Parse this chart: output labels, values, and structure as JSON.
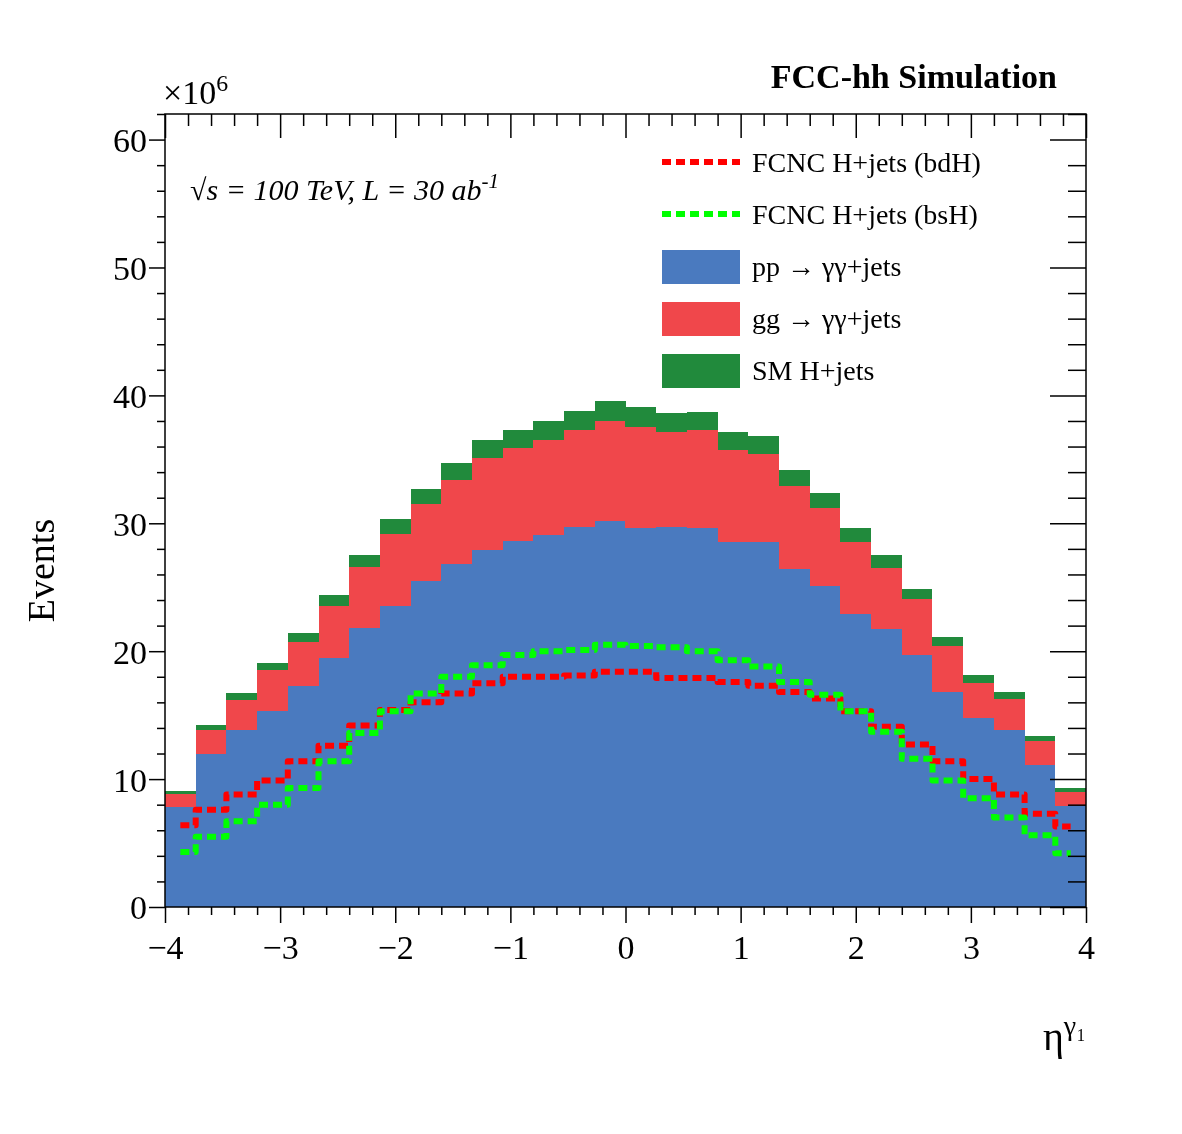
{
  "chart_data": {
    "type": "bar",
    "title": "FCC-hh Simulation",
    "xlabel": "η$^{γ₁}$",
    "ylabel": "Events",
    "annotations": [
      "√s = 100 TeV, L = 30 ab$^{-1}$",
      "×10$^{6}$"
    ],
    "x": [
      -3.8667,
      -3.6,
      -3.3333,
      -3.0667,
      -2.8,
      -2.5333,
      -2.2667,
      -2,
      -1.7333,
      -1.4667,
      -1.2,
      -0.9333,
      -0.6667,
      -0.4,
      -0.1333,
      0.1333,
      0.4,
      0.6667,
      0.9333,
      1.2,
      1.4667,
      1.7333,
      2,
      2.2667,
      2.5333,
      2.8,
      3.0667,
      3.3333,
      3.6,
      3.8667
    ],
    "stacked": true,
    "legend": "top right",
    "series": [
      {
        "name": "pp  →  γγ+jets",
        "color": "#4a7abf",
        "values": [
          7.8,
          12.0,
          13.8,
          15.3,
          17.3,
          19.5,
          21.8,
          23.5,
          25.5,
          26.8,
          27.9,
          28.6,
          29.1,
          29.7,
          30.2,
          29.6,
          29.7,
          29.6,
          28.5,
          28.5,
          26.4,
          25.1,
          22.9,
          21.7,
          19.7,
          16.8,
          14.8,
          13.8,
          11.1,
          7.9
        ]
      },
      {
        "name": "gg  →  γγ+jets",
        "color": "#f0474b",
        "values": [
          1.0,
          1.8,
          2.4,
          3.2,
          3.4,
          4.0,
          4.8,
          5.7,
          6.0,
          6.6,
          7.2,
          7.3,
          7.4,
          7.6,
          7.8,
          7.9,
          7.4,
          7.7,
          7.2,
          6.9,
          6.5,
          6.1,
          5.6,
          4.8,
          4.4,
          3.6,
          2.7,
          2.5,
          1.9,
          1.1
        ]
      },
      {
        "name": "SM H+jets",
        "color": "#218a3c",
        "values": [
          0.3,
          0.4,
          0.5,
          0.6,
          0.7,
          0.9,
          0.9,
          1.1,
          1.2,
          1.3,
          1.4,
          1.4,
          1.5,
          1.5,
          1.6,
          1.6,
          1.5,
          1.4,
          1.4,
          1.4,
          1.3,
          1.2,
          1.1,
          1.0,
          0.8,
          0.7,
          0.6,
          0.5,
          0.4,
          0.3
        ]
      },
      {
        "name": "FCNC H+jets (bdH)",
        "type": "step",
        "line_style": "dashed",
        "color": "#ff0000",
        "values": [
          6.4,
          7.6,
          8.8,
          9.9,
          11.4,
          12.6,
          14.2,
          15.4,
          16.0,
          16.7,
          17.5,
          18.0,
          18.0,
          18.1,
          18.4,
          18.4,
          17.9,
          17.9,
          17.6,
          17.3,
          16.8,
          16.3,
          15.3,
          14.1,
          12.7,
          11.4,
          10.0,
          8.8,
          7.3,
          6.3
        ]
      },
      {
        "name": "FCNC H+jets (bsH)",
        "type": "step",
        "line_style": "dashed",
        "color": "#00ff00",
        "values": [
          4.3,
          5.5,
          6.7,
          8.0,
          9.3,
          11.4,
          13.6,
          15.3,
          16.7,
          18.0,
          18.9,
          19.7,
          20.0,
          20.1,
          20.5,
          20.4,
          20.3,
          20.0,
          19.3,
          18.8,
          17.6,
          16.6,
          15.3,
          13.7,
          11.6,
          9.9,
          8.5,
          7.0,
          5.6,
          4.2
        ]
      }
    ],
    "xlim": [
      -4,
      4
    ],
    "xticks": [
      -4,
      {
        "value": -3.8,
        "label": null
      },
      {
        "value": -3.6,
        "label": null
      },
      {
        "value": -3.4,
        "label": null
      },
      {
        "value": -3.2,
        "label": null
      },
      {
        "value": -3,
        "label": "−3"
      },
      {
        "value": -2.8,
        "label": null
      },
      {
        "value": -2.6,
        "label": null
      },
      {
        "value": -2.4,
        "label": null
      },
      {
        "value": -2.2,
        "label": null
      },
      {
        "value": -2,
        "label": "−2"
      },
      {
        "value": -1.8,
        "label": null
      },
      {
        "value": -1.6,
        "label": null
      },
      {
        "value": -1.4,
        "label": null
      },
      {
        "value": -1.2,
        "label": null
      },
      {
        "value": -1,
        "label": "−1"
      },
      {
        "value": -0.8,
        "label": null
      },
      {
        "value": -0.6,
        "label": null
      },
      {
        "value": -0.4,
        "label": null
      },
      {
        "value": -0.2,
        "label": null
      },
      0,
      {
        "value": 0.2,
        "label": null
      },
      {
        "value": 0.4,
        "label": null
      },
      {
        "value": 0.6,
        "label": null
      },
      {
        "value": 0.8,
        "label": null
      },
      1,
      {
        "value": 1.2,
        "label": null
      },
      {
        "value": 1.4,
        "label": null
      },
      {
        "value": 1.6,
        "label": null
      },
      {
        "value": 1.8,
        "label": null
      },
      2,
      {
        "value": 2.2,
        "label": null
      },
      {
        "value": 2.4,
        "label": null
      },
      {
        "value": 2.6,
        "label": null
      },
      {
        "value": 2.8,
        "label": null
      },
      3,
      {
        "value": 3.2,
        "label": null
      },
      {
        "value": 3.4,
        "label": null
      },
      {
        "value": 3.6,
        "label": null
      },
      {
        "value": 3.8,
        "label": null
      },
      4
    ],
    "ylim": [
      0,
      62
    ],
    "yticks": [
      0,
      {
        "value": 2,
        "label": null
      },
      {
        "value": 4,
        "label": null
      },
      {
        "value": 6,
        "label": null
      },
      {
        "value": 8,
        "label": null
      },
      10,
      {
        "value": 12,
        "label": null
      },
      {
        "value": 14,
        "label": null
      },
      {
        "value": 16,
        "label": null
      },
      {
        "value": 18,
        "label": null
      },
      20,
      {
        "value": 22,
        "label": null
      },
      {
        "value": 24,
        "label": null
      },
      {
        "value": 26,
        "label": null
      },
      {
        "value": 28,
        "label": null
      },
      30,
      {
        "value": 32,
        "label": null
      },
      {
        "value": 34,
        "label": null
      },
      {
        "value": 36,
        "label": null
      },
      {
        "value": 38,
        "label": null
      },
      40,
      {
        "value": 42,
        "label": null
      },
      {
        "value": 44,
        "label": null
      },
      {
        "value": 46,
        "label": null
      },
      {
        "value": 48,
        "label": null
      },
      50,
      {
        "value": 52,
        "label": null
      },
      {
        "value": 54,
        "label": null
      },
      {
        "value": 56,
        "label": null
      },
      {
        "value": 58,
        "label": null
      },
      60,
      {
        "value": 62,
        "label": null
      }
    ]
  }
}
